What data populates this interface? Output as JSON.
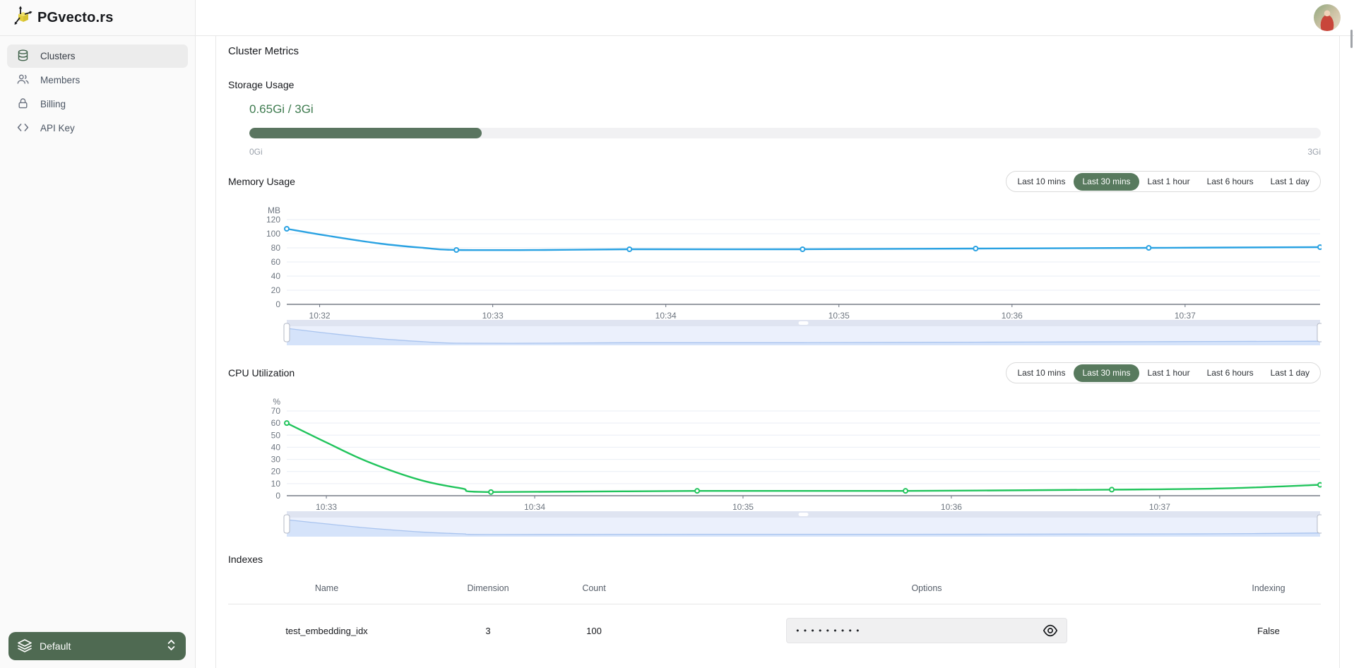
{
  "brand": {
    "name": "PGvecto.rs"
  },
  "sidebar": {
    "items": [
      {
        "label": "Clusters",
        "icon": "database",
        "active": true
      },
      {
        "label": "Members",
        "icon": "users",
        "active": false
      },
      {
        "label": "Billing",
        "icon": "lock",
        "active": false
      },
      {
        "label": "API Key",
        "icon": "code",
        "active": false
      }
    ],
    "workspace": {
      "label": "Default",
      "icon": "layers"
    }
  },
  "page": {
    "title": "Cluster Metrics"
  },
  "storage": {
    "title": "Storage Usage",
    "value_label": "0.65Gi / 3Gi",
    "used_gi": 0.65,
    "total_gi": 3,
    "percent": 21.7,
    "min_label": "0Gi",
    "max_label": "3Gi",
    "fill_color": "#5a7560"
  },
  "time_ranges": {
    "options": [
      "Last 10 mins",
      "Last 30 mins",
      "Last 1 hour",
      "Last 6 hours",
      "Last 1 day"
    ],
    "selected": "Last 30 mins"
  },
  "charts": {
    "memory": {
      "title": "Memory Usage",
      "type": "line",
      "unit": "MB",
      "color": "#2aa2e2",
      "ylim": [
        0,
        120
      ],
      "yticks": [
        0,
        20,
        40,
        60,
        80,
        100,
        120
      ],
      "xlim": [
        1.81,
        7.78
      ],
      "xticks": [
        {
          "t": 2,
          "label": "10:32"
        },
        {
          "t": 3,
          "label": "10:33"
        },
        {
          "t": 4,
          "label": "10:34"
        },
        {
          "t": 5,
          "label": "10:35"
        },
        {
          "t": 6,
          "label": "10:36"
        },
        {
          "t": 7,
          "label": "10:37"
        }
      ],
      "points": [
        [
          1.81,
          107
        ],
        [
          2.79,
          77
        ],
        [
          3.79,
          78
        ],
        [
          4.79,
          78
        ],
        [
          5.79,
          79
        ],
        [
          6.79,
          80
        ],
        [
          7.78,
          81
        ]
      ],
      "curve": [
        [
          1.81,
          107
        ],
        [
          2.05,
          97
        ],
        [
          2.35,
          86
        ],
        [
          2.6,
          80
        ],
        [
          2.79,
          77
        ],
        [
          3.3,
          77
        ],
        [
          3.79,
          78
        ],
        [
          4.79,
          78
        ],
        [
          5.79,
          79
        ],
        [
          6.79,
          80
        ],
        [
          7.78,
          81
        ]
      ]
    },
    "cpu": {
      "title": "CPU Utilization",
      "type": "line",
      "unit": "%",
      "color": "#21c45c",
      "ylim": [
        0,
        70
      ],
      "yticks": [
        0,
        10,
        20,
        30,
        40,
        50,
        60,
        70
      ],
      "xlim": [
        2.81,
        7.77
      ],
      "xticks": [
        {
          "t": 3,
          "label": "10:33"
        },
        {
          "t": 4,
          "label": "10:34"
        },
        {
          "t": 5,
          "label": "10:35"
        },
        {
          "t": 6,
          "label": "10:36"
        },
        {
          "t": 7,
          "label": "10:37"
        }
      ],
      "points": [
        [
          2.81,
          60
        ],
        [
          3.79,
          3
        ],
        [
          4.78,
          4
        ],
        [
          5.78,
          4
        ],
        [
          6.77,
          5
        ],
        [
          7.77,
          9
        ]
      ],
      "curve": [
        [
          2.81,
          60
        ],
        [
          3.0,
          44
        ],
        [
          3.2,
          28
        ],
        [
          3.45,
          13
        ],
        [
          3.65,
          6
        ],
        [
          3.79,
          3
        ],
        [
          4.78,
          4
        ],
        [
          5.78,
          4
        ],
        [
          6.77,
          5
        ],
        [
          7.3,
          6
        ],
        [
          7.77,
          9
        ]
      ]
    }
  },
  "indexes": {
    "title": "Indexes",
    "columns": [
      "Name",
      "Dimension",
      "Count",
      "Options",
      "Indexing"
    ],
    "rows": [
      {
        "name": "test_embedding_idx",
        "dimension": "3",
        "count": "100",
        "options_masked": "•••••••••",
        "indexing": "False"
      }
    ]
  }
}
